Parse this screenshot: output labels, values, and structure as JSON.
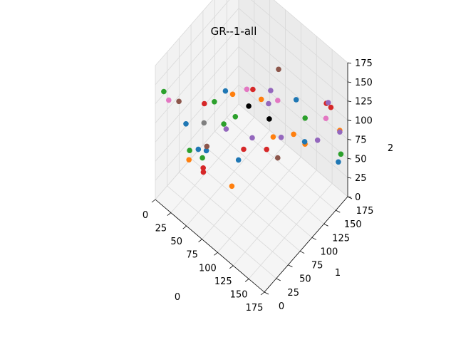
{
  "chart_data": {
    "type": "scatter",
    "title": "GR--1-all",
    "xlabel": "0",
    "ylabel": "1",
    "zlabel": "2",
    "xlim": [
      0,
      175
    ],
    "ylim": [
      0,
      175
    ],
    "zlim": [
      0,
      175
    ],
    "x_ticks": [
      "0",
      "25",
      "50",
      "75",
      "100",
      "125",
      "150",
      "175"
    ],
    "y_ticks": [
      "0",
      "25",
      "50",
      "75",
      "100",
      "125",
      "150",
      "175"
    ],
    "z_ticks": [
      "0",
      "25",
      "50",
      "75",
      "100",
      "125",
      "150",
      "175"
    ],
    "grid": true,
    "pane_color": "#f2f2f2",
    "series": [
      {
        "color": "#1f77b4",
        "points": [
          [
            82,
            40,
            170
          ],
          [
            40,
            12,
            118
          ],
          [
            46,
            30,
            76
          ],
          [
            80,
            70,
            57
          ],
          [
            36,
            60,
            46
          ],
          [
            100,
            165,
            82
          ],
          [
            125,
            150,
            55
          ],
          [
            160,
            175,
            35
          ]
        ]
      },
      {
        "color": "#ff7f0e",
        "points": [
          [
            82,
            55,
            155
          ],
          [
            102,
            89,
            138
          ],
          [
            44,
            13,
            73
          ],
          [
            106,
            22,
            75
          ],
          [
            115,
            140,
            65
          ],
          [
            160,
            178,
            74
          ],
          [
            86,
            135,
            45
          ],
          [
            118,
            160,
            40
          ]
        ]
      },
      {
        "color": "#2ca02c",
        "points": [
          [
            78,
            22,
            166
          ],
          [
            6,
            10,
            138
          ],
          [
            39,
            21,
            76
          ],
          [
            81,
            62,
            120
          ],
          [
            112,
            168,
            64
          ],
          [
            164,
            175,
            48
          ],
          [
            42,
            44,
            52
          ],
          [
            48,
            81,
            74
          ]
        ]
      },
      {
        "color": "#d62728",
        "points": [
          [
            42,
            48,
            120
          ],
          [
            58,
            25,
            58
          ],
          [
            74,
            108,
            118
          ],
          [
            148,
            175,
            98
          ],
          [
            137,
            180,
            92
          ],
          [
            57,
            26,
            62
          ],
          [
            90,
            116,
            45
          ],
          [
            73,
            90,
            52
          ]
        ]
      },
      {
        "color": "#9467bd",
        "points": [
          [
            80,
            44,
            116
          ],
          [
            108,
            101,
            145
          ],
          [
            103,
            103,
            123
          ],
          [
            143,
            176,
            100
          ],
          [
            160,
            178,
            72
          ],
          [
            132,
            168,
            49
          ],
          [
            76,
            104,
            59
          ],
          [
            98,
            136,
            52
          ]
        ]
      },
      {
        "color": "#8c564b",
        "points": [
          [
            100,
            128,
            148
          ],
          [
            21,
            22,
            127
          ],
          [
            49,
            44,
            72
          ],
          [
            104,
            121,
            40
          ]
        ]
      },
      {
        "color": "#e377c2",
        "points": [
          [
            107,
            117,
            120
          ],
          [
            88,
            77,
            150
          ],
          [
            10,
            15,
            126
          ],
          [
            140,
            175,
            78
          ]
        ]
      },
      {
        "color": "#7f7f7f",
        "points": [
          [
            43,
            46,
            97
          ]
        ]
      },
      {
        "color": "#000000",
        "points": [
          [
            75,
            98,
            104
          ],
          [
            95,
            115,
            89
          ]
        ]
      }
    ]
  }
}
